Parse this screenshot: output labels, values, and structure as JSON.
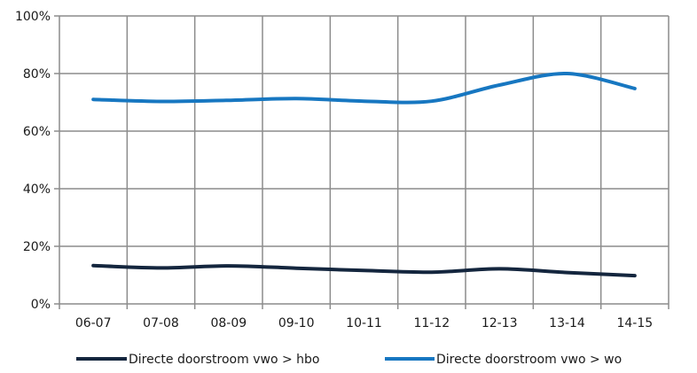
{
  "chart_data": {
    "type": "line",
    "categories": [
      "06-07",
      "07-08",
      "08-09",
      "09-10",
      "10-11",
      "11-12",
      "12-13",
      "13-14",
      "14-15"
    ],
    "series": [
      {
        "name": "Directe doorstroom vwo > hbo",
        "color": "#14263e",
        "values": [
          13.3,
          12.5,
          13.2,
          12.4,
          11.6,
          11.0,
          12.2,
          10.9,
          9.8
        ]
      },
      {
        "name": "Directe doorstroom vwo > wo",
        "color": "#1777c1",
        "values": [
          71.0,
          70.3,
          70.7,
          71.3,
          70.4,
          70.4,
          76.0,
          80.0,
          74.8
        ]
      }
    ],
    "yticks": [
      "0%",
      "20%",
      "40%",
      "60%",
      "80%",
      "100%"
    ],
    "ylim": [
      0,
      100
    ],
    "grid": true,
    "legend_position": "bottom",
    "title": "",
    "xlabel": "",
    "ylabel": ""
  }
}
